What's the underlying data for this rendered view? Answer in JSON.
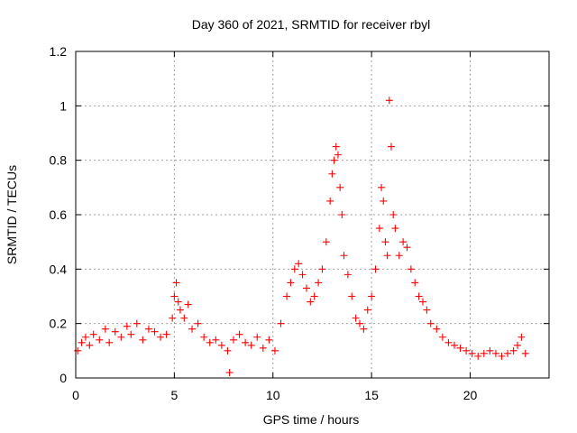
{
  "chart_data": {
    "type": "scatter",
    "title": "Day 360 of 2021, SRMTID for receiver rbyl",
    "xlabel": "GPS time / hours",
    "ylabel": "SRMTID / TECUs",
    "xlim": [
      0,
      24
    ],
    "ylim": [
      0,
      1.2
    ],
    "grid": true,
    "marker": "plus",
    "marker_color": "#ff0000",
    "xticks": [
      {
        "value": 0,
        "label": "0"
      },
      {
        "value": 5,
        "label": "5"
      },
      {
        "value": 10,
        "label": "10"
      },
      {
        "value": 15,
        "label": "15"
      },
      {
        "value": 20,
        "label": "20"
      }
    ],
    "yticks": [
      {
        "value": 0,
        "label": "0"
      },
      {
        "value": 0.2,
        "label": "0.2"
      },
      {
        "value": 0.4,
        "label": "0.4"
      },
      {
        "value": 0.6,
        "label": "0.6"
      },
      {
        "value": 0.8,
        "label": "0.8"
      },
      {
        "value": 1.0,
        "label": "1"
      },
      {
        "value": 1.2,
        "label": "1.2"
      }
    ],
    "x": [
      0.1,
      0.3,
      0.5,
      0.7,
      0.9,
      1.2,
      1.5,
      1.7,
      2.0,
      2.3,
      2.6,
      2.8,
      3.1,
      3.4,
      3.7,
      4.0,
      4.3,
      4.6,
      4.9,
      5.0,
      5.1,
      5.2,
      5.3,
      5.5,
      5.7,
      5.9,
      6.2,
      6.5,
      6.8,
      7.1,
      7.4,
      7.7,
      7.8,
      8.0,
      8.3,
      8.6,
      8.9,
      9.2,
      9.5,
      9.8,
      10.1,
      10.4,
      10.7,
      10.9,
      11.1,
      11.3,
      11.5,
      11.7,
      11.9,
      12.1,
      12.3,
      12.5,
      12.7,
      12.9,
      13.0,
      13.1,
      13.2,
      13.3,
      13.4,
      13.5,
      13.6,
      13.8,
      14.0,
      14.2,
      14.4,
      14.6,
      14.8,
      15.0,
      15.2,
      15.4,
      15.5,
      15.6,
      15.7,
      15.8,
      15.9,
      16.0,
      16.1,
      16.2,
      16.4,
      16.6,
      16.8,
      17.0,
      17.2,
      17.4,
      17.6,
      17.8,
      18.0,
      18.3,
      18.6,
      18.9,
      19.2,
      19.5,
      19.8,
      20.1,
      20.4,
      20.7,
      21.0,
      21.3,
      21.6,
      21.9,
      22.2,
      22.4,
      22.6,
      22.8
    ],
    "y": [
      0.1,
      0.13,
      0.15,
      0.12,
      0.16,
      0.14,
      0.18,
      0.13,
      0.17,
      0.15,
      0.19,
      0.16,
      0.2,
      0.14,
      0.18,
      0.17,
      0.15,
      0.16,
      0.22,
      0.3,
      0.35,
      0.28,
      0.25,
      0.22,
      0.27,
      0.18,
      0.2,
      0.15,
      0.13,
      0.14,
      0.12,
      0.1,
      0.02,
      0.14,
      0.16,
      0.13,
      0.12,
      0.15,
      0.11,
      0.14,
      0.1,
      0.2,
      0.3,
      0.35,
      0.4,
      0.42,
      0.38,
      0.33,
      0.28,
      0.3,
      0.35,
      0.4,
      0.5,
      0.65,
      0.75,
      0.8,
      0.85,
      0.82,
      0.7,
      0.6,
      0.45,
      0.38,
      0.3,
      0.22,
      0.2,
      0.18,
      0.25,
      0.3,
      0.4,
      0.55,
      0.7,
      0.65,
      0.5,
      0.45,
      1.02,
      0.85,
      0.6,
      0.55,
      0.45,
      0.5,
      0.48,
      0.4,
      0.35,
      0.3,
      0.28,
      0.25,
      0.2,
      0.18,
      0.15,
      0.13,
      0.12,
      0.11,
      0.1,
      0.09,
      0.08,
      0.09,
      0.1,
      0.09,
      0.08,
      0.09,
      0.1,
      0.12,
      0.15,
      0.09
    ]
  }
}
